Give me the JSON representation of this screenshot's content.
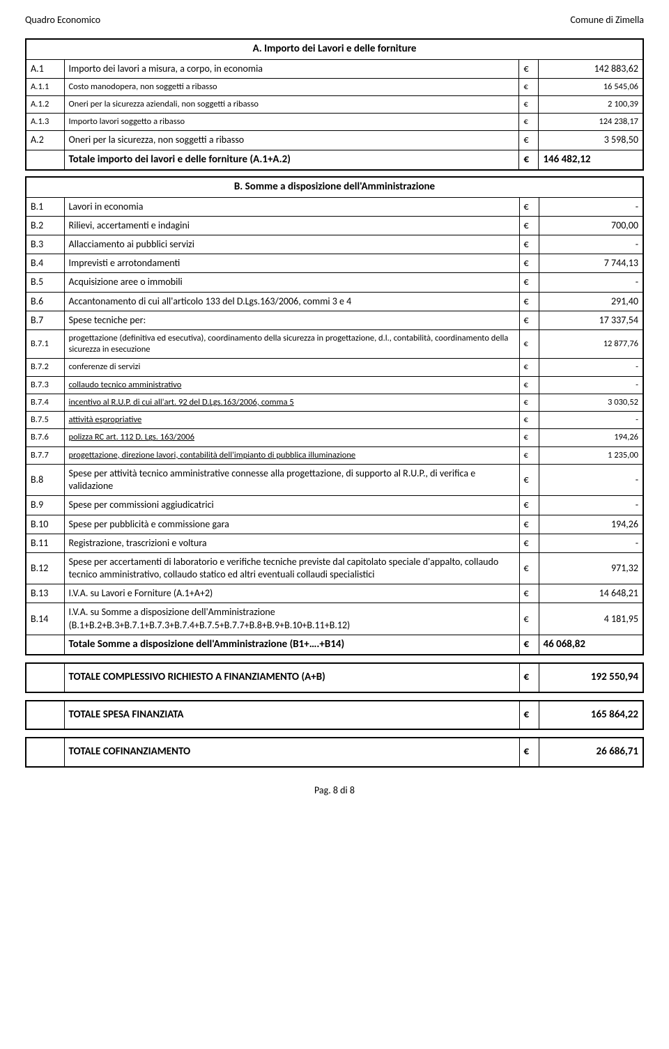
{
  "header": {
    "left": "Quadro Economico",
    "right": "Comune di Zimella"
  },
  "sectionA": {
    "title": "A. Importo dei Lavori e delle forniture",
    "rows": [
      {
        "code": "A.1",
        "desc": "Importo dei lavori a misura, a corpo, in economia",
        "cur": "€",
        "val": "142 883,62",
        "sub": false
      },
      {
        "code": "A.1.1",
        "desc": "Costo manodopera, non soggetti a ribasso",
        "cur": "€",
        "val": "16 545,06",
        "sub": true
      },
      {
        "code": "A.1.2",
        "desc": "Oneri per la sicurezza aziendali, non soggetti a ribasso",
        "cur": "€",
        "val": "2 100,39",
        "sub": true
      },
      {
        "code": "A.1.3",
        "desc": "Importo lavori soggetto a ribasso",
        "cur": "€",
        "val": "124 238,17",
        "sub": true
      },
      {
        "code": "A.2",
        "desc": "Oneri per la sicurezza, non soggetti a ribasso",
        "cur": "€",
        "val": "3 598,50",
        "sub": false
      }
    ],
    "total": {
      "desc": "Totale importo dei lavori e delle forniture (A.1+A.2)",
      "cur": "€",
      "val": "146 482,12"
    }
  },
  "sectionB": {
    "title": "B. Somme a disposizione dell'Amministrazione",
    "rows": [
      {
        "code": "B.1",
        "desc": "Lavori in economia",
        "cur": "€",
        "val": "-"
      },
      {
        "code": "B.2",
        "desc": "Rilievi, accertamenti e indagini",
        "cur": "€",
        "val": "700,00"
      },
      {
        "code": "B.3",
        "desc": "Allacciamento ai pubblici servizi",
        "cur": "€",
        "val": "-"
      },
      {
        "code": "B.4",
        "desc": "Imprevisti e arrotondamenti",
        "cur": "€",
        "val": "7 744,13"
      },
      {
        "code": "B.5",
        "desc": "Acquisizione aree o immobili",
        "cur": "€",
        "val": "-"
      },
      {
        "code": "B.6",
        "desc": "Accantonamento di cui all'articolo 133 del D.Lgs.163/2006, commi 3 e 4",
        "cur": "€",
        "val": "291,40"
      },
      {
        "code": "B.7",
        "desc": "Spese tecniche per:",
        "cur": "€",
        "val": "17 337,54"
      },
      {
        "code": "B.7.1",
        "desc": "progettazione (definitiva ed esecutiva), coordinamento della sicurezza in progettazione, d.l., contabilità, coordinamento della sicurezza in esecuzione",
        "cur": "€",
        "val": "12 877,76",
        "sub": true
      },
      {
        "code": "B.7.2",
        "desc": "conferenze di servizi",
        "cur": "€",
        "val": "-",
        "sub": true
      },
      {
        "code": "B.7.3",
        "desc": "collaudo tecnico amministrativo",
        "cur": "€",
        "val": "-",
        "sub": true,
        "underline": true
      },
      {
        "code": "B.7.4",
        "desc": "incentivo al R.U.P. di cui all'art. 92 del D.Lgs.163/2006, comma 5",
        "cur": "€",
        "val": "3 030,52",
        "sub": true,
        "underline": true
      },
      {
        "code": "B.7.5",
        "desc": "attività espropriative",
        "cur": "€",
        "val": "-",
        "sub": true,
        "underline": true
      },
      {
        "code": "B.7.6",
        "desc": "polizza RC art. 112 D. Lgs. 163/2006",
        "cur": "€",
        "val": "194,26",
        "sub": true,
        "underline": true
      },
      {
        "code": "B.7.7",
        "desc": "progettazione, direzione lavori, contabilità dell'impianto di pubblica illuminazione",
        "cur": "€",
        "val": "1 235,00",
        "sub": true,
        "underline": true
      },
      {
        "code": "B.8",
        "desc": "Spese per attività tecnico amministrative connesse alla progettazione, di supporto al R.U.P., di verifica e validazione",
        "cur": "€",
        "val": "-"
      },
      {
        "code": "B.9",
        "desc": "Spese per commissioni aggiudicatrici",
        "cur": "€",
        "val": "-"
      },
      {
        "code": "B.10",
        "desc": "Spese per pubblicità e commissione gara",
        "cur": "€",
        "val": "194,26"
      },
      {
        "code": "B.11",
        "desc": "Registrazione, trascrizioni e voltura",
        "cur": "€",
        "val": "-"
      },
      {
        "code": "B.12",
        "desc": "Spese per accertamenti di laboratorio e verifiche tecniche previste dal capitolato speciale d'appalto, collaudo tecnico amministrativo, collaudo statico ed altri eventuali collaudi specialistici",
        "cur": "€",
        "val": "971,32"
      },
      {
        "code": "B.13",
        "desc": "I.V.A. su Lavori e Forniture (A.1+A+2)",
        "cur": "€",
        "val": "14 648,21"
      },
      {
        "code": "B.14",
        "desc": "I.V.A. su Somme a disposizione dell'Amministrazione (B.1+B.2+B.3+B.7.1+B.7.3+B.7.4+B.7.5+B.7.7+B.8+B.9+B.10+B.11+B.12)",
        "cur": "€",
        "val": "4 181,95"
      }
    ],
    "total": {
      "desc": "Totale Somme a disposizione dell'Amministrazione (B1+….+B14)",
      "cur": "€",
      "val": "46 068,82"
    }
  },
  "grandTotals": [
    {
      "desc": "TOTALE COMPLESSIVO RICHIESTO A FINANZIAMENTO (A+B)",
      "cur": "€",
      "val": "192 550,94"
    },
    {
      "desc": "TOTALE SPESA FINANZIATA",
      "cur": "€",
      "val": "165 864,22"
    },
    {
      "desc": "TOTALE COFINANZIAMENTO",
      "cur": "€",
      "val": "26 686,71"
    }
  ],
  "footer": "Pag. 8 di 8"
}
